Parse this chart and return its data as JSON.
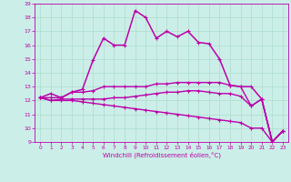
{
  "xlabel": "Windchill (Refroidissement éolien,°C)",
  "background_color": "#cceee8",
  "grid_color": "#aaddcc",
  "line_color": "#bb00aa",
  "xlim": [
    -0.5,
    23.5
  ],
  "ylim": [
    9,
    19
  ],
  "yticks": [
    9,
    10,
    11,
    12,
    13,
    14,
    15,
    16,
    17,
    18,
    19
  ],
  "xticks": [
    0,
    1,
    2,
    3,
    4,
    5,
    6,
    7,
    8,
    9,
    10,
    11,
    12,
    13,
    14,
    15,
    16,
    17,
    18,
    19,
    20,
    21,
    22,
    23
  ],
  "series": [
    [
      12.2,
      12.5,
      12.2,
      12.6,
      12.8,
      14.9,
      16.5,
      16.0,
      16.0,
      18.5,
      18.0,
      16.5,
      17.0,
      16.6,
      17.0,
      16.2,
      16.1,
      15.0,
      13.1,
      13.0,
      13.0,
      12.1,
      9.0,
      9.8
    ],
    [
      12.2,
      12.2,
      12.2,
      12.6,
      12.6,
      12.7,
      13.0,
      13.0,
      13.0,
      13.0,
      13.0,
      13.2,
      13.2,
      13.3,
      13.3,
      13.3,
      13.3,
      13.3,
      13.1,
      13.0,
      11.6,
      12.1,
      9.0,
      9.8
    ],
    [
      12.2,
      12.0,
      12.1,
      12.1,
      12.1,
      12.1,
      12.1,
      12.2,
      12.2,
      12.3,
      12.4,
      12.5,
      12.6,
      12.6,
      12.7,
      12.7,
      12.6,
      12.5,
      12.5,
      12.3,
      11.6,
      12.1,
      9.0,
      9.8
    ],
    [
      12.2,
      12.0,
      12.0,
      12.0,
      11.9,
      11.8,
      11.7,
      11.6,
      11.5,
      11.4,
      11.3,
      11.2,
      11.1,
      11.0,
      10.9,
      10.8,
      10.7,
      10.6,
      10.5,
      10.4,
      10.0,
      10.0,
      9.0,
      9.8
    ]
  ]
}
